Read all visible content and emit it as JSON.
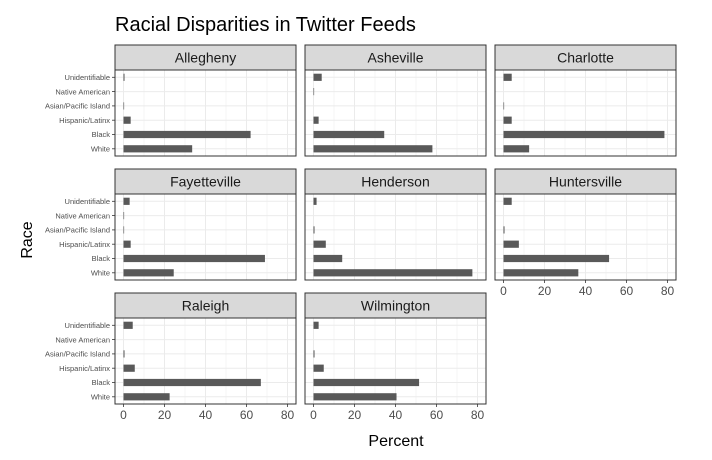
{
  "chart_data": {
    "type": "bar",
    "orientation": "horizontal",
    "title": "Racial Disparities in Twitter Feeds",
    "xlabel": "Percent",
    "ylabel": "Race",
    "xlim": [
      0,
      80
    ],
    "x_ticks": [
      0,
      20,
      40,
      60,
      80
    ],
    "categories": [
      "Unidentifiable",
      "Native American",
      "Asian/Pacific Island",
      "Hispanic/Latinx",
      "Black",
      "White"
    ],
    "grid": true,
    "legend": "none",
    "bar_color": "#595959",
    "panels": [
      {
        "name": "Allegheny",
        "values": [
          0.5,
          0,
          0.3,
          3.5,
          62,
          33.5
        ]
      },
      {
        "name": "Asheville",
        "values": [
          4,
          0.3,
          0,
          2.5,
          34.5,
          58
        ]
      },
      {
        "name": "Charlotte",
        "values": [
          4,
          0,
          0.3,
          4,
          78.5,
          12.5
        ]
      },
      {
        "name": "Fayetteville",
        "values": [
          3,
          0.3,
          0.3,
          3.5,
          69,
          24.5
        ]
      },
      {
        "name": "Henderson",
        "values": [
          1.5,
          0,
          0.5,
          6,
          14,
          77.5
        ]
      },
      {
        "name": "Huntersville",
        "values": [
          4,
          0,
          0.5,
          7.5,
          51.5,
          36.5
        ]
      },
      {
        "name": "Raleigh",
        "values": [
          4.5,
          0,
          0.5,
          5.5,
          67,
          22.5
        ]
      },
      {
        "name": "Wilmington",
        "values": [
          2.5,
          0,
          0.5,
          5,
          51.5,
          40.5
        ]
      }
    ]
  }
}
